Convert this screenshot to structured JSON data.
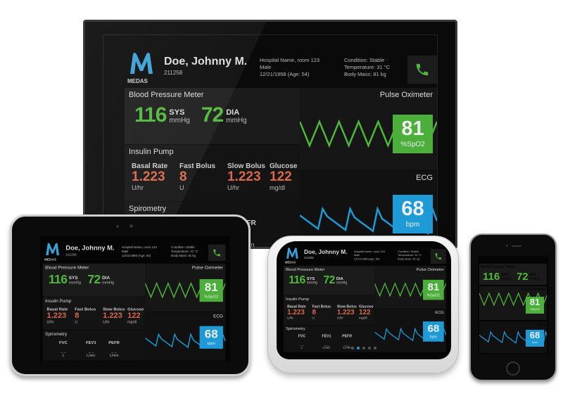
{
  "dashboard": {
    "logo_text": "MEDAS",
    "patient_name": "Doe, Johnny M.",
    "patient_id": "211258",
    "location": "Hospital Name, room 123",
    "sex": "Male",
    "dob": "12/21/1958 (Age: 54)",
    "condition": "Condition: Stable",
    "temperature": "Temperature: 31 °C",
    "body_mass": "Body Mass: 81 kg",
    "call_icon": "phone-icon",
    "bp": {
      "title": "Blood Pressure Meter",
      "sys": "116",
      "sys_label": "SYS",
      "dia": "72",
      "dia_label": "DIA",
      "unit": "mmHg"
    },
    "insulin": {
      "title": "Insulin Pump",
      "items": [
        {
          "label": "Basal Rate",
          "value": "1.223",
          "unit": "U/hr"
        },
        {
          "label": "Fast Bolus",
          "value": "8",
          "unit": "U"
        },
        {
          "label": "Slow Bolus",
          "value": "1.223",
          "unit": "U/hr"
        },
        {
          "label": "Glucose",
          "value": "122",
          "unit": "mg/dl"
        }
      ]
    },
    "spirometry": {
      "title": "Spirometry",
      "items": [
        {
          "label": "FVC",
          "value": "_ _",
          "unit": "L"
        },
        {
          "label": "FEV1",
          "value": "_ _",
          "unit": "L/sec"
        },
        {
          "label": "PEFR",
          "value": "_ _",
          "unit": "L/min"
        }
      ]
    },
    "pulse": {
      "title": "Pulse Oximeter",
      "value": "81",
      "unit": "%SpO2"
    },
    "ecg": {
      "title": "ECG",
      "value": "68",
      "unit": "bpm"
    }
  },
  "pager": {
    "pages": 5,
    "active": 1
  },
  "colors": {
    "green": "#4fb83a",
    "green_box": "#4caf3c",
    "blue_box": "#1e9ad6",
    "orange": "#d9674a",
    "logo_blue": "#3a9fd6"
  }
}
